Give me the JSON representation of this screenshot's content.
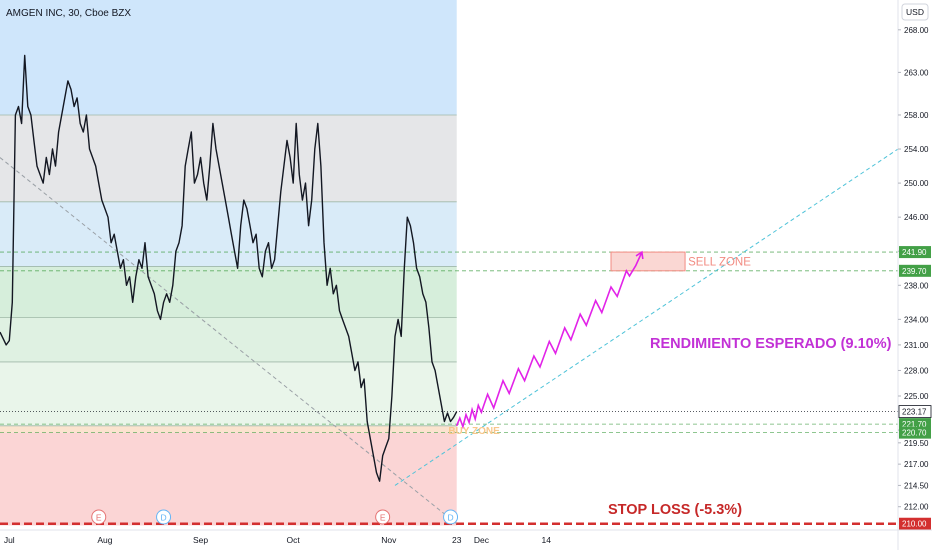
{
  "header": {
    "title": "AMGEN INC, 30, Cboe BZX",
    "currency": "USD"
  },
  "chart_data": {
    "type": "line",
    "title": "AMGEN INC, 30, Cboe BZX",
    "ylim": [
      209.5,
      271.5
    ],
    "y_ticks": [
      268.0,
      263.0,
      258.0,
      254.0,
      250.0,
      246.0,
      242.0,
      238.0,
      234.0,
      231.0,
      228.0,
      225.0,
      221.0,
      219.5,
      217.0,
      214.5,
      212.0
    ],
    "y_tick_labels": [
      "268.00",
      "263.00",
      "258.00",
      "254.00",
      "250.00",
      "246.00",
      "242.00",
      "238.00",
      "234.00",
      "231.00",
      "228.00",
      "225.00",
      "221.00",
      "219.50",
      "217.00",
      "214.50",
      "212.00"
    ],
    "x_ticks": [
      {
        "label": "Jul",
        "day": 0
      },
      {
        "label": "Aug",
        "day": 31
      },
      {
        "label": "Sep",
        "day": 62
      },
      {
        "label": "Oct",
        "day": 92
      },
      {
        "label": "Nov",
        "day": 123
      },
      {
        "label": "23",
        "day": 145
      },
      {
        "label": "Dec",
        "day": 153
      },
      {
        "label": "14",
        "day": 174
      }
    ],
    "x_domain_days": [
      -3,
      288
    ],
    "last_bar_day": 145,
    "price_series": {
      "name": "AMGN",
      "points": [
        [
          -3,
          232.5
        ],
        [
          -1,
          231
        ],
        [
          0,
          231.5
        ],
        [
          1,
          236
        ],
        [
          2,
          258
        ],
        [
          3,
          259
        ],
        [
          4,
          257
        ],
        [
          5,
          265
        ],
        [
          6,
          259
        ],
        [
          7,
          258
        ],
        [
          8,
          255
        ],
        [
          9,
          252
        ],
        [
          10,
          251
        ],
        [
          11,
          250
        ],
        [
          12,
          253
        ],
        [
          13,
          251
        ],
        [
          14,
          254
        ],
        [
          15,
          252
        ],
        [
          16,
          256
        ],
        [
          17,
          258
        ],
        [
          18,
          260
        ],
        [
          19,
          262
        ],
        [
          20,
          261
        ],
        [
          21,
          259
        ],
        [
          22,
          260
        ],
        [
          23,
          257
        ],
        [
          24,
          256
        ],
        [
          25,
          258
        ],
        [
          26,
          254
        ],
        [
          27,
          253
        ],
        [
          28,
          252
        ],
        [
          29,
          250
        ],
        [
          30,
          248
        ],
        [
          31,
          247
        ],
        [
          32,
          246
        ],
        [
          33,
          243
        ],
        [
          34,
          244
        ],
        [
          35,
          242
        ],
        [
          36,
          240
        ],
        [
          37,
          241
        ],
        [
          38,
          238
        ],
        [
          39,
          239
        ],
        [
          40,
          236
        ],
        [
          41,
          239
        ],
        [
          42,
          241
        ],
        [
          43,
          240
        ],
        [
          44,
          243
        ],
        [
          45,
          239
        ],
        [
          46,
          238
        ],
        [
          47,
          237
        ],
        [
          48,
          235
        ],
        [
          49,
          234
        ],
        [
          50,
          236
        ],
        [
          51,
          237
        ],
        [
          52,
          236
        ],
        [
          53,
          238
        ],
        [
          54,
          242
        ],
        [
          55,
          243
        ],
        [
          56,
          245
        ],
        [
          57,
          252
        ],
        [
          58,
          254
        ],
        [
          59,
          256
        ],
        [
          60,
          250
        ],
        [
          61,
          251
        ],
        [
          62,
          253
        ],
        [
          63,
          250
        ],
        [
          64,
          248
        ],
        [
          65,
          252
        ],
        [
          66,
          257
        ],
        [
          67,
          254
        ],
        [
          68,
          252
        ],
        [
          69,
          250
        ],
        [
          70,
          248
        ],
        [
          71,
          246
        ],
        [
          72,
          244
        ],
        [
          73,
          242
        ],
        [
          74,
          240
        ],
        [
          75,
          245
        ],
        [
          76,
          248
        ],
        [
          77,
          247
        ],
        [
          78,
          245
        ],
        [
          79,
          243
        ],
        [
          80,
          244
        ],
        [
          81,
          240
        ],
        [
          82,
          239
        ],
        [
          83,
          242
        ],
        [
          84,
          243
        ],
        [
          85,
          240
        ],
        [
          86,
          241
        ],
        [
          87,
          245
        ],
        [
          88,
          249
        ],
        [
          89,
          252
        ],
        [
          90,
          255
        ],
        [
          91,
          253
        ],
        [
          92,
          250
        ],
        [
          93,
          257
        ],
        [
          94,
          251
        ],
        [
          95,
          248
        ],
        [
          96,
          250
        ],
        [
          97,
          245
        ],
        [
          98,
          248
        ],
        [
          99,
          254
        ],
        [
          100,
          257
        ],
        [
          101,
          252
        ],
        [
          102,
          243
        ],
        [
          103,
          238
        ],
        [
          104,
          240
        ],
        [
          105,
          237
        ],
        [
          106,
          238
        ],
        [
          107,
          235
        ],
        [
          108,
          234
        ],
        [
          109,
          233
        ],
        [
          110,
          232
        ],
        [
          111,
          230
        ],
        [
          112,
          228
        ],
        [
          113,
          229
        ],
        [
          114,
          226
        ],
        [
          115,
          227
        ],
        [
          116,
          222
        ],
        [
          117,
          220
        ],
        [
          118,
          218
        ],
        [
          119,
          216
        ],
        [
          120,
          215
        ],
        [
          121,
          218
        ],
        [
          122,
          219
        ],
        [
          123,
          220
        ],
        [
          124,
          225
        ],
        [
          125,
          232
        ],
        [
          126,
          234
        ],
        [
          127,
          232
        ],
        [
          128,
          240
        ],
        [
          129,
          246
        ],
        [
          130,
          245
        ],
        [
          131,
          243
        ],
        [
          132,
          240
        ],
        [
          133,
          239
        ],
        [
          134,
          237
        ],
        [
          135,
          236
        ],
        [
          136,
          233
        ],
        [
          137,
          229
        ],
        [
          138,
          228
        ],
        [
          139,
          226
        ],
        [
          140,
          224
        ],
        [
          141,
          222
        ],
        [
          142,
          223
        ],
        [
          143,
          222
        ],
        [
          144,
          222.5
        ],
        [
          145,
          223.17
        ]
      ]
    },
    "projection_series": {
      "name": "Projection",
      "points": [
        [
          145,
          221.5
        ],
        [
          146,
          222.4
        ],
        [
          147,
          221.4
        ],
        [
          148,
          222.8
        ],
        [
          149,
          221.9
        ],
        [
          150,
          223.4
        ],
        [
          151,
          222.3
        ],
        [
          152,
          223.9
        ],
        [
          153,
          223.1
        ],
        [
          155,
          225.2
        ],
        [
          157,
          223.6
        ],
        [
          160,
          226.8
        ],
        [
          162,
          225.3
        ],
        [
          165,
          228.2
        ],
        [
          167,
          226.8
        ],
        [
          170,
          229.7
        ],
        [
          172,
          228.4
        ],
        [
          175,
          231.4
        ],
        [
          177,
          230.0
        ],
        [
          180,
          233.0
        ],
        [
          182,
          231.6
        ],
        [
          185,
          234.6
        ],
        [
          187,
          233.3
        ],
        [
          190,
          236.2
        ],
        [
          192,
          234.8
        ],
        [
          195,
          237.8
        ],
        [
          197,
          236.7
        ],
        [
          200,
          239.7
        ],
        [
          201,
          239.1
        ],
        [
          203,
          240.3
        ],
        [
          205,
          241.9
        ]
      ],
      "color": "#e223e8"
    },
    "trend_lines": [
      {
        "from": [
          -3,
          253
        ],
        "to": [
          145,
          210
        ],
        "style": "dashed",
        "color": "#9aa0a6"
      },
      {
        "from": [
          125,
          214.5
        ],
        "to": [
          288,
          254.0
        ],
        "style": "dashed",
        "color": "#4fc3d9"
      }
    ],
    "fib_zones": [
      {
        "from": 271.5,
        "to": 258.0,
        "color": "#cfe6fb"
      },
      {
        "from": 258.0,
        "to": 247.8,
        "color": "#e5e6e8"
      },
      {
        "from": 247.8,
        "to": 240.2,
        "color": "#d9ebf8"
      },
      {
        "from": 240.2,
        "to": 234.2,
        "color": "#d6eedb"
      },
      {
        "from": 234.2,
        "to": 229.0,
        "color": "#dff1e2"
      },
      {
        "from": 229.0,
        "to": 221.5,
        "color": "#e9f5ea"
      },
      {
        "from": 221.5,
        "to": 220.7,
        "color": "#fbe3cf"
      },
      {
        "from": 220.7,
        "to": 209.8,
        "color": "#fbd5d5"
      }
    ],
    "fib_lines": [
      258.0,
      247.8,
      240.2,
      234.2,
      229.0,
      221.5
    ],
    "horizontal_levels": [
      {
        "value": 241.9,
        "label": "241.90",
        "color": "#43a047",
        "style": "dashed"
      },
      {
        "value": 239.7,
        "label": "239.70",
        "color": "#43a047",
        "style": "dashed"
      },
      {
        "value": 223.17,
        "label": "223.17",
        "color": "#131722",
        "style": "dotted"
      },
      {
        "value": 221.7,
        "label": "221.70",
        "color": "#43a047",
        "style": "dashed"
      },
      {
        "value": 220.7,
        "label": "220.70",
        "color": "#43a047",
        "style": "dashed"
      },
      {
        "value": 210.0,
        "label": "210.00",
        "color": "#d32f2f",
        "style": "dashed"
      }
    ],
    "sell_zone": {
      "x_from": 195,
      "x_to": 219,
      "y_from": 239.7,
      "y_to": 241.9,
      "label": "SELL ZONE",
      "color": "#f28b82"
    },
    "buy_zone_label": {
      "text": "BUY ZONE",
      "day": 152,
      "value": 221.0,
      "color": "#f7c78b"
    },
    "event_markers": [
      {
        "day": 29,
        "label": "E",
        "color": "#e57373"
      },
      {
        "day": 50,
        "label": "D",
        "color": "#64b5f6"
      },
      {
        "day": 121,
        "label": "E",
        "color": "#e57373"
      },
      {
        "day": 143,
        "label": "D",
        "color": "#64b5f6"
      }
    ],
    "annotations": [
      {
        "text": "RENDIMIENTO ESPERADO (9.10%)",
        "color": "#c231d6"
      },
      {
        "text": "STOP LOSS (-5.3%)",
        "color": "#c62828"
      }
    ]
  }
}
